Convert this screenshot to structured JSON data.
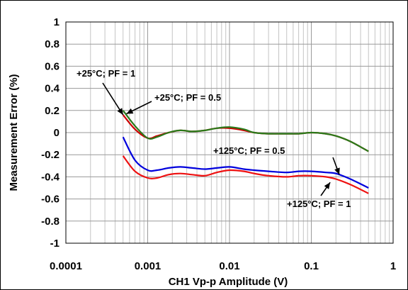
{
  "chart_data": {
    "type": "line",
    "xlabel": "CH1 Vp-p Amplitude (V)",
    "ylabel": "Measurement Error (%)",
    "xscale": "log",
    "xlim": [
      0.0001,
      1
    ],
    "ylim": [
      -1,
      1
    ],
    "grid": true,
    "x_tick_labels": [
      "0.0001",
      "0.001",
      "0.01",
      "0.1",
      "1"
    ],
    "y_tick_labels": [
      "1",
      "0.8",
      "0.6",
      "0.4",
      "0.2",
      "0",
      "-0.2",
      "-0.4",
      "-0.6",
      "-0.8",
      "-1"
    ],
    "colors": {
      "series_25_pf1": "#cc0000",
      "series_25_pf05": "#2a7a1a",
      "series_125_pf05": "#0000dd",
      "series_125_pf1": "#ee1111"
    },
    "series": [
      {
        "key": "series_25_pf1",
        "x": [
          0.0005,
          0.0007,
          0.001,
          0.0013,
          0.0018,
          0.0025,
          0.0035,
          0.005,
          0.007,
          0.01,
          0.015,
          0.02,
          0.03,
          0.05,
          0.07,
          0.1,
          0.15,
          0.2,
          0.3,
          0.5
        ],
        "y": [
          0.16,
          0.03,
          -0.05,
          -0.03,
          0.0,
          0.02,
          0.01,
          0.02,
          0.04,
          0.04,
          0.02,
          0.0,
          -0.01,
          -0.01,
          -0.01,
          0.0,
          -0.01,
          -0.03,
          -0.08,
          -0.17
        ]
      },
      {
        "key": "series_25_pf05",
        "x": [
          0.0005,
          0.0007,
          0.001,
          0.0013,
          0.0018,
          0.0025,
          0.0035,
          0.005,
          0.007,
          0.01,
          0.015,
          0.02,
          0.03,
          0.05,
          0.07,
          0.1,
          0.15,
          0.2,
          0.3,
          0.5
        ],
        "y": [
          0.2,
          0.06,
          -0.05,
          -0.04,
          0.0,
          0.02,
          0.01,
          0.02,
          0.04,
          0.05,
          0.03,
          0.0,
          -0.01,
          -0.01,
          -0.01,
          0.0,
          -0.01,
          -0.03,
          -0.08,
          -0.17
        ]
      },
      {
        "key": "series_125_pf05",
        "x": [
          0.0005,
          0.0007,
          0.001,
          0.0013,
          0.0018,
          0.0025,
          0.0035,
          0.005,
          0.007,
          0.01,
          0.015,
          0.02,
          0.03,
          0.05,
          0.07,
          0.1,
          0.15,
          0.2,
          0.3,
          0.5
        ],
        "y": [
          -0.04,
          -0.25,
          -0.34,
          -0.34,
          -0.32,
          -0.31,
          -0.32,
          -0.33,
          -0.32,
          -0.31,
          -0.33,
          -0.34,
          -0.35,
          -0.36,
          -0.35,
          -0.35,
          -0.36,
          -0.37,
          -0.42,
          -0.5
        ]
      },
      {
        "key": "series_125_pf1",
        "x": [
          0.0005,
          0.0007,
          0.001,
          0.0013,
          0.0018,
          0.0025,
          0.0035,
          0.005,
          0.007,
          0.01,
          0.015,
          0.02,
          0.03,
          0.05,
          0.07,
          0.1,
          0.15,
          0.2,
          0.3,
          0.5
        ],
        "y": [
          -0.21,
          -0.35,
          -0.41,
          -0.41,
          -0.38,
          -0.37,
          -0.38,
          -0.39,
          -0.36,
          -0.34,
          -0.35,
          -0.37,
          -0.39,
          -0.4,
          -0.39,
          -0.39,
          -0.4,
          -0.42,
          -0.47,
          -0.55
        ]
      }
    ],
    "annotations": [
      {
        "text": "+25°C; PF = 1",
        "arrow_to": [
          0.0005,
          0.16
        ]
      },
      {
        "text": "+25°C; PF = 0.5",
        "arrow_to": [
          0.00055,
          0.17
        ]
      },
      {
        "text": "+125°C; PF = 0.5",
        "arrow_to": [
          0.22,
          -0.38
        ]
      },
      {
        "text": "+125°C; PF = 1",
        "arrow_to": [
          0.17,
          -0.45
        ]
      }
    ]
  }
}
